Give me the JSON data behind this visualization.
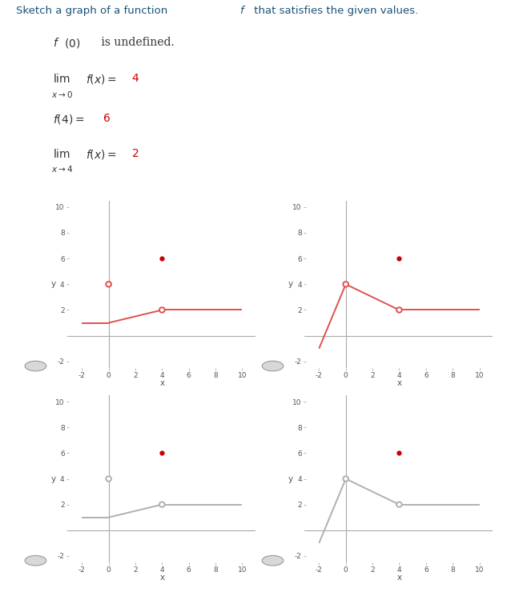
{
  "title_text": "Sketch a graph of a function f that satisfies the given values.",
  "title_color": "#1a5276",
  "condition_color_black": "#333333",
  "condition_color_red": "#cc0000",
  "axes_color": "#aaaaaa",
  "line_color_red": "#e05050",
  "line_color_gray": "#b0b0b0",
  "dot_color": "#cc0000",
  "xlim": [
    -3,
    11
  ],
  "ylim": [
    -2.5,
    10.5
  ],
  "graphs": [
    {
      "segments": [
        {
          "x": [
            -2,
            0
          ],
          "y": [
            1,
            1
          ]
        },
        {
          "x": [
            0,
            4
          ],
          "y": [
            1,
            2
          ]
        },
        {
          "x": [
            4,
            10
          ],
          "y": [
            2,
            2
          ]
        }
      ],
      "open_circle_0": [
        0,
        4
      ],
      "open_circle_4": [
        4,
        2
      ],
      "filled_dot": [
        4,
        6
      ],
      "gray": false
    },
    {
      "segments": [
        {
          "x": [
            -2,
            0
          ],
          "y": [
            -1,
            4
          ]
        },
        {
          "x": [
            0,
            4
          ],
          "y": [
            4,
            2
          ]
        },
        {
          "x": [
            4,
            10
          ],
          "y": [
            2,
            2
          ]
        }
      ],
      "open_circle_0": [
        0,
        4
      ],
      "open_circle_4": [
        4,
        2
      ],
      "filled_dot": [
        4,
        6
      ],
      "gray": false
    },
    {
      "segments": [
        {
          "x": [
            -2,
            0
          ],
          "y": [
            1,
            1
          ]
        },
        {
          "x": [
            0,
            4
          ],
          "y": [
            1,
            2
          ]
        },
        {
          "x": [
            4,
            10
          ],
          "y": [
            2,
            2
          ]
        }
      ],
      "open_circle_0": [
        0,
        4
      ],
      "open_circle_4": [
        4,
        2
      ],
      "filled_dot": [
        4,
        6
      ],
      "gray": true
    },
    {
      "segments": [
        {
          "x": [
            -2,
            0
          ],
          "y": [
            -1,
            4
          ]
        },
        {
          "x": [
            0,
            4
          ],
          "y": [
            4,
            2
          ]
        },
        {
          "x": [
            4,
            10
          ],
          "y": [
            2,
            2
          ]
        }
      ],
      "open_circle_0": [
        0,
        4
      ],
      "open_circle_4": [
        4,
        2
      ],
      "filled_dot": [
        4,
        6
      ],
      "gray": true
    }
  ]
}
